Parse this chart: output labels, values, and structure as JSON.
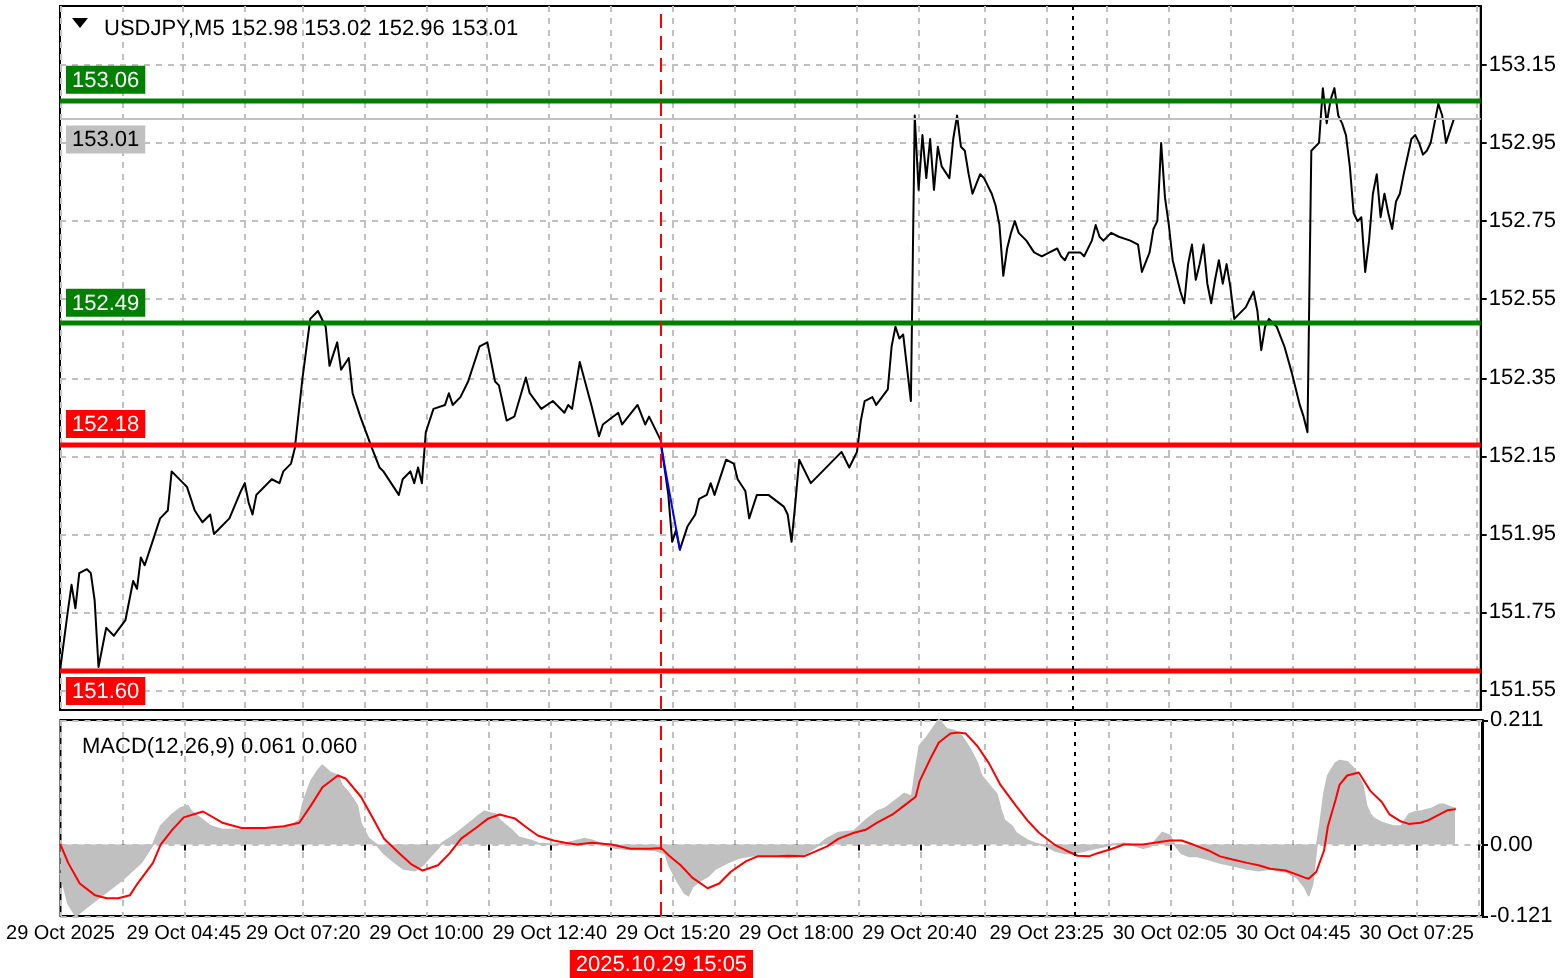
{
  "chart_data": [
    {
      "type": "line",
      "title": "USDJPY,M5 152.98 153.02 152.96 153.01",
      "tick_labels": "y",
      "grid": true,
      "marker": "none",
      "xlim": [
        "2025-10-29T02:05",
        "2025-10-30T08:50"
      ],
      "xticks": [
        {
          "value": "2025-10-29T02:05",
          "label": null
        },
        {
          "value": "2025-10-29T03:25",
          "label": null
        },
        {
          "value": "2025-10-29T04:45",
          "label": null
        },
        {
          "value": "2025-10-29T06:05",
          "label": null
        },
        {
          "value": "2025-10-29T07:20",
          "label": null
        },
        {
          "value": "2025-10-29T08:40",
          "label": null
        },
        {
          "value": "2025-10-29T10:00",
          "label": null
        },
        {
          "value": "2025-10-29T11:20",
          "label": null
        },
        {
          "value": "2025-10-29T12:40",
          "label": null
        },
        {
          "value": "2025-10-29T14:00",
          "label": null
        },
        {
          "value": "2025-10-29T15:20",
          "label": null
        },
        {
          "value": "2025-10-29T16:40",
          "label": null
        },
        {
          "value": "2025-10-29T18:00",
          "label": null
        },
        {
          "value": "2025-10-29T19:20",
          "label": null
        },
        {
          "value": "2025-10-29T20:40",
          "label": null
        },
        {
          "value": "2025-10-29T22:05",
          "label": null
        },
        {
          "value": "2025-10-29T23:25",
          "label": null
        },
        {
          "value": "2025-10-30T00:45",
          "label": null
        },
        {
          "value": "2025-10-30T02:05",
          "label": null
        },
        {
          "value": "2025-10-30T03:25",
          "label": null
        },
        {
          "value": "2025-10-30T04:45",
          "label": null
        },
        {
          "value": "2025-10-30T06:05",
          "label": null
        },
        {
          "value": "2025-10-30T07:25",
          "label": null
        },
        {
          "value": "2025-10-30T08:45",
          "label": null
        }
      ],
      "ylim": [
        151.5,
        153.3
      ],
      "yticks": [
        151.55,
        151.75,
        151.95,
        152.15,
        152.35,
        152.55,
        152.75,
        152.95,
        153.15
      ],
      "series": [
        {
          "color": "#000000",
          "x": [
            "2025-10-29T02:05",
            "2025-10-29T02:15",
            "2025-10-29T02:20",
            "2025-10-29T02:25",
            "2025-10-29T02:30",
            "2025-10-29T02:40",
            "2025-10-29T02:45",
            "2025-10-29T02:50",
            "2025-10-29T02:55",
            "2025-10-29T03:05",
            "2025-10-29T03:15",
            "2025-10-29T03:30",
            "2025-10-29T03:40",
            "2025-10-29T03:45",
            "2025-10-29T03:50",
            "2025-10-29T03:55",
            "2025-10-29T04:05",
            "2025-10-29T04:15",
            "2025-10-29T04:25",
            "2025-10-29T04:30",
            "2025-10-29T04:45",
            "2025-10-29T04:50",
            "2025-10-29T05:00",
            "2025-10-29T05:10",
            "2025-10-29T05:20",
            "2025-10-29T05:25",
            "2025-10-29T05:45",
            "2025-10-29T06:00",
            "2025-10-29T06:05",
            "2025-10-29T06:10",
            "2025-10-29T06:15",
            "2025-10-29T06:20",
            "2025-10-29T06:40",
            "2025-10-29T06:50",
            "2025-10-29T06:55",
            "2025-10-29T07:05",
            "2025-10-29T07:10",
            "2025-10-29T07:15",
            "2025-10-29T07:20",
            "2025-10-29T07:30",
            "2025-10-29T07:40",
            "2025-10-29T07:50",
            "2025-10-29T07:55",
            "2025-10-29T08:05",
            "2025-10-29T08:10",
            "2025-10-29T08:20",
            "2025-10-29T08:25",
            "2025-10-29T08:35",
            "2025-10-29T08:50",
            "2025-10-29T09:00",
            "2025-10-29T09:05",
            "2025-10-29T09:25",
            "2025-10-29T09:30",
            "2025-10-29T09:40",
            "2025-10-29T09:45",
            "2025-10-29T09:50",
            "2025-10-29T09:55",
            "2025-10-29T10:00",
            "2025-10-29T10:10",
            "2025-10-29T10:25",
            "2025-10-29T10:30",
            "2025-10-29T10:35",
            "2025-10-29T10:45",
            "2025-10-29T10:55",
            "2025-10-29T11:10",
            "2025-10-29T11:20",
            "2025-10-29T11:30",
            "2025-10-29T11:35",
            "2025-10-29T11:45",
            "2025-10-29T11:55",
            "2025-10-29T12:10",
            "2025-10-29T12:15",
            "2025-10-29T12:30",
            "2025-10-29T12:45",
            "2025-10-29T13:00",
            "2025-10-29T13:05",
            "2025-10-29T13:10",
            "2025-10-29T13:20",
            "2025-10-29T13:35",
            "2025-10-29T13:45",
            "2025-10-29T13:50",
            "2025-10-29T14:10",
            "2025-10-29T14:15",
            "2025-10-29T14:35",
            "2025-10-29T14:45",
            "2025-10-29T14:50",
            "2025-10-29T15:05",
            "2025-10-29T15:15",
            "2025-10-29T15:20",
            "2025-10-29T15:25",
            "2025-10-29T15:30",
            "2025-10-29T15:40",
            "2025-10-29T15:50",
            "2025-10-29T15:55",
            "2025-10-29T16:05",
            "2025-10-29T16:10",
            "2025-10-29T16:15",
            "2025-10-29T16:25",
            "2025-10-29T16:30",
            "2025-10-29T16:40",
            "2025-10-29T16:45",
            "2025-10-29T16:55",
            "2025-10-29T17:00",
            "2025-10-29T17:10",
            "2025-10-29T17:25",
            "2025-10-29T17:45",
            "2025-10-29T17:50",
            "2025-10-29T17:55",
            "2025-10-29T18:00",
            "2025-10-29T18:05",
            "2025-10-29T18:15",
            "2025-10-29T18:20",
            "2025-10-29T18:30",
            "2025-10-29T18:45",
            "2025-10-29T19:00",
            "2025-10-29T19:10",
            "2025-10-29T19:20",
            "2025-10-29T19:25",
            "2025-10-29T19:30",
            "2025-10-29T19:40",
            "2025-10-29T19:45",
            "2025-10-29T20:00",
            "2025-10-29T20:05",
            "2025-10-29T20:10",
            "2025-10-29T20:15",
            "2025-10-29T20:20",
            "2025-10-29T20:30",
            "2025-10-29T20:35",
            "2025-10-29T20:40",
            "2025-10-29T20:45",
            "2025-10-29T20:50",
            "2025-10-29T20:55",
            "2025-10-29T21:00",
            "2025-10-29T21:05",
            "2025-10-29T21:10",
            "2025-10-29T21:20",
            "2025-10-29T21:25",
            "2025-10-29T21:30",
            "2025-10-29T21:35",
            "2025-10-29T21:40",
            "2025-10-29T21:45",
            "2025-10-29T21:50",
            "2025-10-29T22:00",
            "2025-10-29T22:05",
            "2025-10-29T22:15",
            "2025-10-29T22:20",
            "2025-10-29T22:25",
            "2025-10-29T22:30",
            "2025-10-29T22:35",
            "2025-10-29T22:40",
            "2025-10-29T22:45",
            "2025-10-29T22:50",
            "2025-10-29T23:00",
            "2025-10-29T23:10",
            "2025-10-29T23:20",
            "2025-10-29T23:30",
            "2025-10-29T23:40",
            "2025-10-29T23:45",
            "2025-10-29T23:50",
            "2025-10-29T23:55",
            "2025-10-30T00:10",
            "2025-10-30T00:15",
            "2025-10-30T00:25",
            "2025-10-30T00:30",
            "2025-10-30T00:35",
            "2025-10-30T00:40",
            "2025-10-30T00:50",
            "2025-10-30T01:00",
            "2025-10-30T01:15",
            "2025-10-30T01:25",
            "2025-10-30T01:30",
            "2025-10-30T01:40",
            "2025-10-30T01:45",
            "2025-10-30T01:50",
            "2025-10-30T01:55",
            "2025-10-30T02:00",
            "2025-10-30T02:05",
            "2025-10-30T02:10",
            "2025-10-30T02:20",
            "2025-10-30T02:25",
            "2025-10-30T02:30",
            "2025-10-30T02:35",
            "2025-10-30T02:40",
            "2025-10-30T02:45",
            "2025-10-30T02:50",
            "2025-10-30T02:55",
            "2025-10-30T03:00",
            "2025-10-30T03:05",
            "2025-10-30T03:10",
            "2025-10-30T03:15",
            "2025-10-30T03:20",
            "2025-10-30T03:25",
            "2025-10-30T03:30",
            "2025-10-30T03:45",
            "2025-10-30T03:55",
            "2025-10-30T04:00",
            "2025-10-30T04:05",
            "2025-10-30T04:10",
            "2025-10-30T04:15",
            "2025-10-30T04:25",
            "2025-10-30T04:35",
            "2025-10-30T04:45",
            "2025-10-30T04:55",
            "2025-10-30T05:00",
            "2025-10-30T05:05",
            "2025-10-30T05:10",
            "2025-10-30T05:20",
            "2025-10-30T05:25",
            "2025-10-30T05:30",
            "2025-10-30T05:35",
            "2025-10-30T05:40",
            "2025-10-30T05:45",
            "2025-10-30T05:50",
            "2025-10-30T05:55",
            "2025-10-30T06:00",
            "2025-10-30T06:05",
            "2025-10-30T06:10",
            "2025-10-30T06:15",
            "2025-10-30T06:20",
            "2025-10-30T06:25",
            "2025-10-30T06:30",
            "2025-10-30T06:35",
            "2025-10-30T06:40",
            "2025-10-30T06:45",
            "2025-10-30T06:50",
            "2025-10-30T06:55",
            "2025-10-30T07:00",
            "2025-10-30T07:05",
            "2025-10-30T07:10",
            "2025-10-30T07:20",
            "2025-10-30T07:25",
            "2025-10-30T07:30",
            "2025-10-30T07:35",
            "2025-10-30T07:40",
            "2025-10-30T07:45",
            "2025-10-30T07:50",
            "2025-10-30T07:55",
            "2025-10-30T08:00",
            "2025-10-30T08:05",
            "2025-10-30T08:10",
            "2025-10-30T08:15"
          ],
          "values": [
            151.6,
            151.75,
            151.82,
            151.76,
            151.85,
            151.86,
            151.85,
            151.78,
            151.61,
            151.71,
            151.69,
            151.73,
            151.83,
            151.81,
            151.89,
            151.87,
            151.93,
            151.99,
            152.01,
            152.11,
            152.08,
            152.07,
            152.01,
            151.98,
            152.0,
            151.95,
            151.99,
            152.06,
            152.08,
            152.03,
            152.0,
            152.05,
            152.09,
            152.08,
            152.11,
            152.13,
            152.17,
            152.26,
            152.35,
            152.5,
            152.52,
            152.48,
            152.38,
            152.44,
            152.37,
            152.4,
            152.31,
            152.25,
            152.17,
            152.12,
            152.11,
            152.05,
            152.09,
            152.11,
            152.08,
            152.12,
            152.08,
            152.21,
            152.27,
            152.28,
            152.31,
            152.28,
            152.3,
            152.34,
            152.43,
            152.44,
            152.34,
            152.33,
            152.24,
            152.25,
            152.35,
            152.31,
            152.27,
            152.29,
            152.26,
            152.28,
            152.27,
            152.39,
            152.28,
            152.2,
            152.23,
            152.26,
            152.23,
            152.28,
            152.23,
            152.25,
            152.19,
            152.05,
            151.93,
            151.96,
            151.91,
            151.97,
            152.0,
            152.04,
            152.05,
            152.08,
            152.05,
            152.11,
            152.14,
            152.13,
            152.09,
            152.06,
            151.99,
            152.05,
            152.05,
            152.02,
            152.0,
            151.93,
            152.03,
            152.14,
            152.1,
            152.08,
            152.1,
            152.13,
            152.16,
            152.12,
            152.16,
            152.24,
            152.29,
            152.3,
            152.28,
            152.32,
            152.43,
            152.48,
            152.45,
            152.46,
            152.29,
            153.02,
            152.83,
            152.97,
            152.86,
            152.96,
            152.83,
            152.94,
            152.89,
            152.86,
            152.96,
            153.02,
            152.94,
            152.93,
            152.87,
            152.82,
            152.87,
            152.86,
            152.82,
            152.79,
            152.74,
            152.61,
            152.68,
            152.72,
            152.75,
            152.72,
            152.7,
            152.67,
            152.66,
            152.67,
            152.68,
            152.66,
            152.65,
            152.67,
            152.67,
            152.66,
            152.7,
            152.74,
            152.71,
            152.7,
            152.72,
            152.71,
            152.7,
            152.69,
            152.62,
            152.67,
            152.73,
            152.75,
            152.95,
            152.81,
            152.74,
            152.65,
            152.57,
            152.54,
            152.64,
            152.69,
            152.6,
            152.64,
            152.69,
            152.59,
            152.54,
            152.6,
            152.65,
            152.59,
            152.64,
            152.58,
            152.5,
            152.53,
            152.57,
            152.52,
            152.42,
            152.48,
            152.5,
            152.48,
            152.43,
            152.36,
            152.28,
            152.25,
            152.21,
            152.93,
            152.95,
            153.09,
            153.0,
            153.06,
            153.09,
            153.02,
            153.0,
            152.97,
            152.89,
            152.77,
            152.75,
            152.76,
            152.62,
            152.7,
            152.82,
            152.87,
            152.76,
            152.82,
            152.77,
            152.73,
            152.8,
            152.82,
            152.87,
            152.96,
            152.97,
            152.95,
            152.92,
            152.93,
            152.95,
            153.0,
            153.05,
            153.02,
            152.95,
            152.98,
            153.01
          ]
        },
        {
          "color": "#0000ff",
          "x": [
            "2025-10-29T15:05",
            "2025-10-29T15:30"
          ],
          "values": [
            152.18,
            151.91
          ]
        }
      ],
      "ref_lines": [
        {
          "axis": "y",
          "value": 153.06,
          "label": "153.06",
          "color": "#008000",
          "line_style": "solid"
        },
        {
          "axis": "y",
          "value": 153.01,
          "label": "153.01",
          "color": "#c0c0c0",
          "line_style": "solid"
        },
        {
          "axis": "y",
          "value": 152.49,
          "label": "152.49",
          "color": "#008000",
          "line_style": "solid"
        },
        {
          "axis": "y",
          "value": 152.18,
          "label": "152.18",
          "color": "#ff0000",
          "line_style": "solid"
        },
        {
          "axis": "y",
          "value": 151.6,
          "label": "151.60",
          "color": "#ff0000",
          "line_style": "solid"
        },
        {
          "axis": "x",
          "value": "2025-10-29T15:05",
          "color": "#ff0000",
          "line_style": "dashed"
        },
        {
          "axis": "x",
          "value": "2025-10-30T00:00",
          "color": "#000000",
          "line_style": "dotted"
        }
      ]
    },
    {
      "type": "line",
      "title": "MACD(12,26,9) 0.061 0.060",
      "grid": true,
      "marker": "none",
      "xlim": [
        "2025-10-29T02:05",
        "2025-10-30T08:50"
      ],
      "xticks": [
        {
          "value": "2025-10-29T02:05",
          "label": "29 Oct 2025"
        },
        {
          "value": "2025-10-29T03:25",
          "label": null
        },
        {
          "value": "2025-10-29T04:45",
          "label": "29 Oct 04:45"
        },
        {
          "value": "2025-10-29T06:05",
          "label": null
        },
        {
          "value": "2025-10-29T07:20",
          "label": "29 Oct 07:20"
        },
        {
          "value": "2025-10-29T08:40",
          "label": null
        },
        {
          "value": "2025-10-29T10:00",
          "label": "29 Oct 10:00"
        },
        {
          "value": "2025-10-29T11:20",
          "label": null
        },
        {
          "value": "2025-10-29T12:40",
          "label": "29 Oct 12:40"
        },
        {
          "value": "2025-10-29T14:00",
          "label": null
        },
        {
          "value": "2025-10-29T15:20",
          "label": "29 Oct 15:20"
        },
        {
          "value": "2025-10-29T16:40",
          "label": null
        },
        {
          "value": "2025-10-29T18:00",
          "label": "29 Oct 18:00"
        },
        {
          "value": "2025-10-29T19:20",
          "label": null
        },
        {
          "value": "2025-10-29T20:40",
          "label": "29 Oct 20:40"
        },
        {
          "value": "2025-10-29T22:05",
          "label": null
        },
        {
          "value": "2025-10-29T23:25",
          "label": "29 Oct 23:25"
        },
        {
          "value": "2025-10-30T00:45",
          "label": null
        },
        {
          "value": "2025-10-30T02:05",
          "label": "30 Oct 02:05"
        },
        {
          "value": "2025-10-30T03:25",
          "label": null
        },
        {
          "value": "2025-10-30T04:45",
          "label": "30 Oct 04:45"
        },
        {
          "value": "2025-10-30T06:05",
          "label": null
        },
        {
          "value": "2025-10-30T07:25",
          "label": "30 Oct 07:25"
        },
        {
          "value": "2025-10-30T08:45",
          "label": null
        }
      ],
      "ylim": [
        -0.121,
        0.211
      ],
      "yticks": [
        -0.121,
        {
          "value": 0,
          "label": "0.00"
        },
        0.211
      ],
      "series": [
        {
          "type": "area",
          "color": "#c0c0c0",
          "x": [
            "2025-10-29T02:05",
            "2025-10-29T02:15",
            "2025-10-29T02:25",
            "2025-10-29T02:35",
            "2025-10-29T03:00",
            "2025-10-29T03:25",
            "2025-10-29T03:50",
            "2025-10-29T04:05",
            "2025-10-29T04:15",
            "2025-10-29T04:30",
            "2025-10-29T04:40",
            "2025-10-29T04:50",
            "2025-10-29T04:55",
            "2025-10-29T05:10",
            "2025-10-29T05:20",
            "2025-10-29T05:35",
            "2025-10-29T06:00",
            "2025-10-29T06:20",
            "2025-10-29T06:45",
            "2025-10-29T07:05",
            "2025-10-29T07:15",
            "2025-10-29T07:20",
            "2025-10-29T07:30",
            "2025-10-29T07:40",
            "2025-10-29T07:45",
            "2025-10-29T07:55",
            "2025-10-29T08:05",
            "2025-10-29T08:10",
            "2025-10-29T08:20",
            "2025-10-29T08:30",
            "2025-10-29T08:35",
            "2025-10-29T08:45",
            "2025-10-29T08:55",
            "2025-10-29T09:05",
            "2025-10-29T09:20",
            "2025-10-29T09:30",
            "2025-10-29T09:45",
            "2025-10-29T09:55",
            "2025-10-29T10:05",
            "2025-10-29T10:15",
            "2025-10-29T10:20",
            "2025-10-29T10:35",
            "2025-10-29T10:45",
            "2025-10-29T11:05",
            "2025-10-29T11:15",
            "2025-10-29T11:30",
            "2025-10-29T11:35",
            "2025-10-29T11:50",
            "2025-10-29T12:00",
            "2025-10-29T12:15",
            "2025-10-29T12:25",
            "2025-10-29T12:45",
            "2025-10-29T13:00",
            "2025-10-29T13:10",
            "2025-10-29T13:25",
            "2025-10-29T13:35",
            "2025-10-29T13:50",
            "2025-10-29T14:05",
            "2025-10-29T14:25",
            "2025-10-29T14:40",
            "2025-10-29T14:55",
            "2025-10-29T15:10",
            "2025-10-29T15:15",
            "2025-10-29T15:25",
            "2025-10-29T15:35",
            "2025-10-29T15:40",
            "2025-10-29T15:45",
            "2025-10-29T15:55",
            "2025-10-29T16:05",
            "2025-10-29T16:15",
            "2025-10-29T16:30",
            "2025-10-29T16:45",
            "2025-10-29T17:00",
            "2025-10-29T17:20",
            "2025-10-29T17:35",
            "2025-10-29T17:50",
            "2025-10-29T18:05",
            "2025-10-29T18:15",
            "2025-10-29T18:30",
            "2025-10-29T18:40",
            "2025-10-29T18:55",
            "2025-10-29T19:15",
            "2025-10-29T19:30",
            "2025-10-29T19:45",
            "2025-10-29T19:55",
            "2025-10-29T20:10",
            "2025-10-29T20:20",
            "2025-10-29T20:30",
            "2025-10-29T20:35",
            "2025-10-29T20:40",
            "2025-10-29T20:50",
            "2025-10-29T21:05",
            "2025-10-29T21:15",
            "2025-10-29T21:25",
            "2025-10-29T21:35",
            "2025-10-29T21:45",
            "2025-10-29T21:55",
            "2025-10-29T22:00",
            "2025-10-29T22:10",
            "2025-10-29T22:20",
            "2025-10-29T22:25",
            "2025-10-29T22:30",
            "2025-10-29T22:40",
            "2025-10-29T22:45",
            "2025-10-29T23:00",
            "2025-10-29T23:10",
            "2025-10-29T23:25",
            "2025-10-29T23:35",
            "2025-10-29T23:50",
            "2025-10-30T00:05",
            "2025-10-30T00:25",
            "2025-10-30T00:40",
            "2025-10-30T00:50",
            "2025-10-30T01:05",
            "2025-10-30T01:15",
            "2025-10-30T01:30",
            "2025-10-30T01:40",
            "2025-10-30T01:55",
            "2025-10-30T02:05",
            "2025-10-30T02:10",
            "2025-10-30T02:20",
            "2025-10-30T02:30",
            "2025-10-30T02:40",
            "2025-10-30T02:55",
            "2025-10-30T03:10",
            "2025-10-30T03:25",
            "2025-10-30T03:45",
            "2025-10-30T04:00",
            "2025-10-30T04:15",
            "2025-10-30T04:35",
            "2025-10-30T04:50",
            "2025-10-30T05:00",
            "2025-10-30T05:05",
            "2025-10-30T05:10",
            "2025-10-30T05:15",
            "2025-10-30T05:20",
            "2025-10-30T05:25",
            "2025-10-30T05:30",
            "2025-10-30T05:40",
            "2025-10-30T05:45",
            "2025-10-30T05:55",
            "2025-10-30T06:05",
            "2025-10-30T06:15",
            "2025-10-30T06:20",
            "2025-10-30T06:25",
            "2025-10-30T06:30",
            "2025-10-30T06:40",
            "2025-10-30T06:55",
            "2025-10-30T07:05",
            "2025-10-30T07:15",
            "2025-10-30T07:25",
            "2025-10-30T07:30",
            "2025-10-30T07:45",
            "2025-10-30T07:55",
            "2025-10-30T08:00",
            "2025-10-30T08:10",
            "2025-10-30T08:15"
          ],
          "values": [
            -0.05,
            -0.1,
            -0.121,
            -0.11,
            -0.085,
            -0.06,
            -0.03,
            0,
            0.031,
            0.051,
            0.061,
            0.066,
            0.056,
            0.041,
            0.031,
            0.025,
            0.025,
            0.028,
            0.028,
            0.033,
            0.041,
            0.071,
            0.107,
            0.127,
            0.134,
            0.122,
            0.117,
            0.101,
            0.086,
            0.066,
            0.035,
            0.01,
            0,
            -0.015,
            -0.031,
            -0.041,
            -0.044,
            -0.035,
            -0.02,
            -0.006,
            0.002,
            0.015,
            0.025,
            0.046,
            0.056,
            0.051,
            0.041,
            0.025,
            0.012,
            0.007,
            0.002,
            0,
            0.002,
            0.005,
            0.01,
            0.007,
            0,
            -0.006,
            -0.008,
            -0.008,
            -0.009,
            -0.015,
            -0.035,
            -0.061,
            -0.082,
            -0.086,
            -0.072,
            -0.061,
            -0.054,
            -0.041,
            -0.031,
            -0.023,
            -0.019,
            -0.019,
            -0.02,
            -0.022,
            -0.019,
            -0.013,
            0,
            0.01,
            0.02,
            0.023,
            0.041,
            0.056,
            0.061,
            0.076,
            0.086,
            0.081,
            0.127,
            0.167,
            0.183,
            0.211,
            0.196,
            0.193,
            0.183,
            0.163,
            0.138,
            0.117,
            0.101,
            0.086,
            0.061,
            0.041,
            0.031,
            0.02,
            0.007,
            0.002,
            -0.003,
            -0.01,
            -0.015,
            -0.013,
            -0.007,
            -0.003,
            0,
            0.002,
            0,
            -0.006,
            -0.003,
            0.02,
            0.015,
            0.002,
            -0.015,
            -0.02,
            -0.02,
            -0.025,
            -0.031,
            -0.035,
            -0.041,
            -0.044,
            -0.041,
            -0.046,
            -0.056,
            -0.072,
            -0.086,
            -0.066,
            -0.006,
            0.035,
            0.086,
            0.117,
            0.138,
            0.142,
            0.14,
            0.127,
            0.101,
            0.066,
            0.051,
            0.044,
            0.037,
            0.031,
            0.031,
            0.051,
            0.056,
            0.056,
            0.061,
            0.068,
            0.068,
            0.063,
            0.061
          ]
        },
        {
          "color": "#ff0000",
          "x": [
            "2025-10-29T02:05",
            "2025-10-29T02:15",
            "2025-10-29T02:30",
            "2025-10-29T02:50",
            "2025-10-29T03:05",
            "2025-10-29T03:20",
            "2025-10-29T03:35",
            "2025-10-29T03:45",
            "2025-10-29T04:05",
            "2025-10-29T04:15",
            "2025-10-29T04:30",
            "2025-10-29T04:45",
            "2025-10-29T05:10",
            "2025-10-29T05:35",
            "2025-10-29T06:00",
            "2025-10-29T06:30",
            "2025-10-29T06:55",
            "2025-10-29T07:15",
            "2025-10-29T07:30",
            "2025-10-29T07:45",
            "2025-10-29T08:05",
            "2025-10-29T08:15",
            "2025-10-29T08:35",
            "2025-10-29T08:50",
            "2025-10-29T09:05",
            "2025-10-29T09:25",
            "2025-10-29T09:40",
            "2025-10-29T09:55",
            "2025-10-29T10:15",
            "2025-10-29T10:30",
            "2025-10-29T10:45",
            "2025-10-29T11:05",
            "2025-10-29T11:20",
            "2025-10-29T11:35",
            "2025-10-29T11:55",
            "2025-10-29T12:10",
            "2025-10-29T12:25",
            "2025-10-29T12:45",
            "2025-10-29T13:00",
            "2025-10-29T13:15",
            "2025-10-29T13:35",
            "2025-10-29T14:00",
            "2025-10-29T14:25",
            "2025-10-29T14:50",
            "2025-10-29T15:05",
            "2025-10-29T15:15",
            "2025-10-29T15:30",
            "2025-10-29T15:45",
            "2025-10-29T16:05",
            "2025-10-29T16:20",
            "2025-10-29T16:35",
            "2025-10-29T16:55",
            "2025-10-29T17:10",
            "2025-10-29T17:35",
            "2025-10-29T17:50",
            "2025-10-29T18:10",
            "2025-10-29T18:40",
            "2025-10-29T18:55",
            "2025-10-29T19:15",
            "2025-10-29T19:30",
            "2025-10-29T19:45",
            "2025-10-29T20:05",
            "2025-10-29T20:20",
            "2025-10-29T20:35",
            "2025-10-29T20:40",
            "2025-10-29T20:55",
            "2025-10-29T21:05",
            "2025-10-29T21:20",
            "2025-10-29T21:30",
            "2025-10-29T21:40",
            "2025-10-29T21:55",
            "2025-10-29T22:10",
            "2025-10-29T22:25",
            "2025-10-29T22:45",
            "2025-10-29T23:00",
            "2025-10-29T23:15",
            "2025-10-29T23:35",
            "2025-10-29T23:50",
            "2025-10-30T00:05",
            "2025-10-30T00:20",
            "2025-10-30T00:30",
            "2025-10-30T00:50",
            "2025-10-30T01:05",
            "2025-10-30T01:30",
            "2025-10-30T01:45",
            "2025-10-30T02:05",
            "2025-10-30T02:20",
            "2025-10-30T02:35",
            "2025-10-30T02:55",
            "2025-10-30T03:10",
            "2025-10-30T03:25",
            "2025-10-30T03:45",
            "2025-10-30T04:00",
            "2025-10-30T04:15",
            "2025-10-30T04:35",
            "2025-10-30T04:50",
            "2025-10-30T05:00",
            "2025-10-30T05:05",
            "2025-10-30T05:15",
            "2025-10-30T05:25",
            "2025-10-30T05:30",
            "2025-10-30T05:40",
            "2025-10-30T05:45",
            "2025-10-30T05:55",
            "2025-10-30T06:10",
            "2025-10-30T06:15",
            "2025-10-30T06:25",
            "2025-10-30T06:40",
            "2025-10-30T06:50",
            "2025-10-30T07:05",
            "2025-10-30T07:15",
            "2025-10-30T07:30",
            "2025-10-30T07:40",
            "2025-10-30T07:55",
            "2025-10-30T08:05",
            "2025-10-30T08:15"
          ],
          "values": [
            0,
            -0.031,
            -0.066,
            -0.086,
            -0.091,
            -0.091,
            -0.086,
            -0.066,
            -0.031,
            0,
            0.025,
            0.046,
            0.056,
            0.037,
            0.028,
            0.028,
            0.031,
            0.037,
            0.066,
            0.097,
            0.117,
            0.112,
            0.081,
            0.046,
            0.01,
            -0.015,
            -0.033,
            -0.044,
            -0.035,
            -0.015,
            0.01,
            0.029,
            0.044,
            0.051,
            0.044,
            0.029,
            0.015,
            0.007,
            0.003,
            0,
            0.003,
            0,
            -0.007,
            -0.007,
            -0.006,
            -0.019,
            -0.035,
            -0.056,
            -0.074,
            -0.066,
            -0.046,
            -0.028,
            -0.02,
            -0.02,
            -0.019,
            -0.02,
            -0.003,
            0.01,
            0.02,
            0.025,
            0.037,
            0.051,
            0.066,
            0.081,
            0.107,
            0.148,
            0.173,
            0.188,
            0.19,
            0.188,
            0.167,
            0.138,
            0.101,
            0.066,
            0.041,
            0.02,
            0,
            -0.01,
            -0.019,
            -0.02,
            -0.015,
            -0.007,
            0,
            0,
            0.003,
            0.007,
            0.007,
            0,
            -0.01,
            -0.02,
            -0.025,
            -0.031,
            -0.035,
            -0.041,
            -0.044,
            -0.051,
            -0.056,
            -0.058,
            -0.046,
            -0.01,
            0.031,
            0.076,
            0.101,
            0.117,
            0.122,
            0.112,
            0.091,
            0.072,
            0.051,
            0.039,
            0.035,
            0.037,
            0.041,
            0.051,
            0.058,
            0.06
          ]
        }
      ],
      "ref_lines": [
        {
          "axis": "x",
          "value": "2025-10-29T15:05",
          "label": "2025.10.29 15:05",
          "color": "#ff0000",
          "line_style": "dashed"
        },
        {
          "axis": "x",
          "value": "2025-10-30T00:00",
          "color": "#000000",
          "line_style": "dotted"
        }
      ]
    }
  ]
}
